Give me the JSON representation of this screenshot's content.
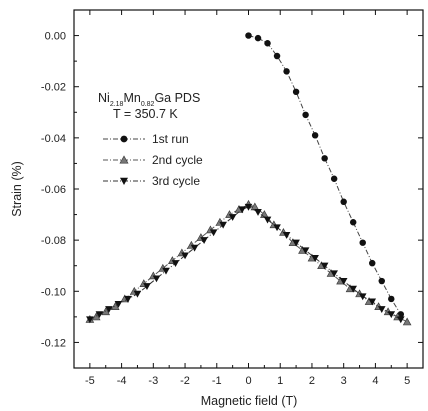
{
  "chart_data": {
    "type": "line",
    "title": {
      "parts": [
        {
          "text": "Ni",
          "sub": false
        },
        {
          "text": "2.18",
          "sub": true
        },
        {
          "text": "Mn",
          "sub": false
        },
        {
          "text": "0.82",
          "sub": true
        },
        {
          "text": "Ga PDS",
          "sub": false
        }
      ],
      "temperature": "T = 350.7 K"
    },
    "xlabel": "Magnetic field (T)",
    "ylabel": "Strain (%)",
    "xlim": [
      -5.5,
      5.5
    ],
    "ylim": [
      -0.13,
      0.01
    ],
    "xticks": [
      -5,
      -4,
      -3,
      -2,
      -1,
      0,
      1,
      2,
      3,
      4,
      5
    ],
    "yticks": [
      0.0,
      -0.02,
      -0.04,
      -0.06,
      -0.08,
      -0.1,
      -0.12
    ],
    "xtick_labels": [
      "-5",
      "-4",
      "-3",
      "-2",
      "-1",
      "0",
      "1",
      "2",
      "3",
      "4",
      "5"
    ],
    "ytick_labels": [
      "0.00",
      "-0.02",
      "-0.04",
      "-0.06",
      "-0.08",
      "-0.10",
      "-0.12"
    ],
    "grid": false,
    "legend_position": "upper-left",
    "series": [
      {
        "name": "1st run",
        "marker": "circle",
        "line_style": "dash-dot",
        "x": [
          0,
          0.3,
          0.6,
          0.9,
          1.2,
          1.5,
          1.8,
          2.1,
          2.4,
          2.7,
          3.0,
          3.3,
          3.6,
          3.9,
          4.2,
          4.5,
          4.8
        ],
        "y": [
          0.0,
          -0.001,
          -0.003,
          -0.008,
          -0.014,
          -0.022,
          -0.031,
          -0.039,
          -0.048,
          -0.056,
          -0.065,
          -0.073,
          -0.081,
          -0.089,
          -0.096,
          -0.103,
          -0.109
        ]
      },
      {
        "name": "2nd cycle",
        "marker": "triangle-up",
        "line_style": "dash-dot",
        "x": [
          5,
          4.7,
          4.4,
          4.1,
          3.8,
          3.5,
          3.2,
          2.9,
          2.6,
          2.3,
          2.0,
          1.7,
          1.4,
          1.1,
          0.8,
          0.5,
          0.2,
          0,
          -0.3,
          -0.6,
          -0.9,
          -1.2,
          -1.5,
          -1.8,
          -2.1,
          -2.4,
          -2.7,
          -3.0,
          -3.3,
          -3.6,
          -3.9,
          -4.2,
          -4.5,
          -4.8,
          -5.0
        ],
        "y": [
          -0.112,
          -0.11,
          -0.108,
          -0.106,
          -0.104,
          -0.101,
          -0.099,
          -0.096,
          -0.093,
          -0.09,
          -0.087,
          -0.084,
          -0.081,
          -0.077,
          -0.074,
          -0.07,
          -0.067,
          -0.066,
          -0.068,
          -0.07,
          -0.073,
          -0.076,
          -0.079,
          -0.082,
          -0.085,
          -0.088,
          -0.091,
          -0.094,
          -0.097,
          -0.1,
          -0.103,
          -0.106,
          -0.108,
          -0.11,
          -0.111
        ]
      },
      {
        "name": "3rd cycle",
        "marker": "triangle-down",
        "line_style": "dash-dot",
        "x": [
          -5.0,
          -4.7,
          -4.4,
          -4.1,
          -3.8,
          -3.5,
          -3.2,
          -2.9,
          -2.6,
          -2.3,
          -2.0,
          -1.7,
          -1.4,
          -1.1,
          -0.8,
          -0.5,
          -0.2,
          0,
          0.3,
          0.6,
          0.9,
          1.2,
          1.5,
          1.8,
          2.1,
          2.4,
          2.7,
          3.0,
          3.3,
          3.6,
          3.9,
          4.2,
          4.5,
          4.8
        ],
        "y": [
          -0.111,
          -0.109,
          -0.107,
          -0.105,
          -0.103,
          -0.101,
          -0.098,
          -0.095,
          -0.092,
          -0.089,
          -0.086,
          -0.083,
          -0.08,
          -0.077,
          -0.074,
          -0.071,
          -0.068,
          -0.067,
          -0.069,
          -0.072,
          -0.075,
          -0.078,
          -0.081,
          -0.084,
          -0.087,
          -0.09,
          -0.093,
          -0.096,
          -0.099,
          -0.102,
          -0.104,
          -0.107,
          -0.109,
          -0.111
        ]
      }
    ]
  }
}
